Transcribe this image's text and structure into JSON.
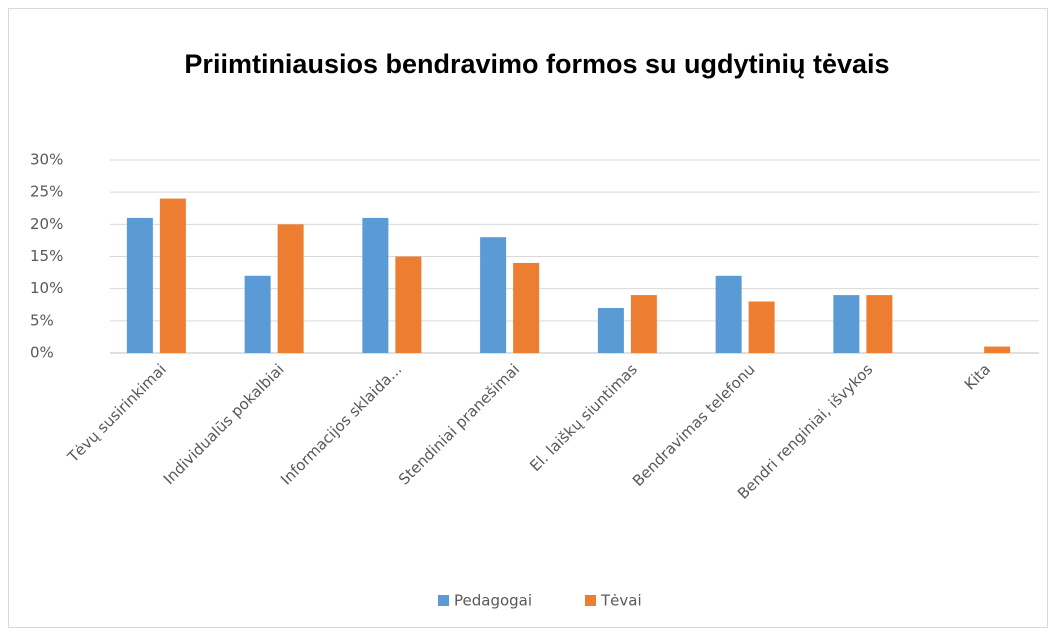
{
  "chart_data": {
    "type": "bar",
    "title": "Priimtiniausios bendravimo formos su ugdytinių tėvais",
    "categories": [
      "Tėvų susirinkimai",
      "Individualūs pokalbiai",
      "Informacijos sklaida...",
      "Stendiniai pranešimai",
      "El. laiškų siuntimas",
      "Bendravimas telefonu",
      "Bendri renginiai, išvykos",
      "Kita"
    ],
    "series": [
      {
        "name": "Pedagogai",
        "color": "#5b9bd5",
        "values": [
          21,
          12,
          21,
          18,
          7,
          12,
          9,
          0
        ]
      },
      {
        "name": "Tėvai",
        "color": "#ed7d31",
        "values": [
          24,
          20,
          15,
          14,
          9,
          8,
          9,
          1
        ]
      }
    ],
    "ylim": [
      0,
      30
    ],
    "yticks": [
      {
        "value": 0,
        "label": "0%"
      },
      {
        "value": 5,
        "label": "5%"
      },
      {
        "value": 10,
        "label": "10%"
      },
      {
        "value": 15,
        "label": "15%"
      },
      {
        "value": 20,
        "label": "20%"
      },
      {
        "value": 25,
        "label": "25%"
      },
      {
        "value": 30,
        "label": "30%"
      }
    ],
    "grid": true,
    "legend": "bottom"
  }
}
